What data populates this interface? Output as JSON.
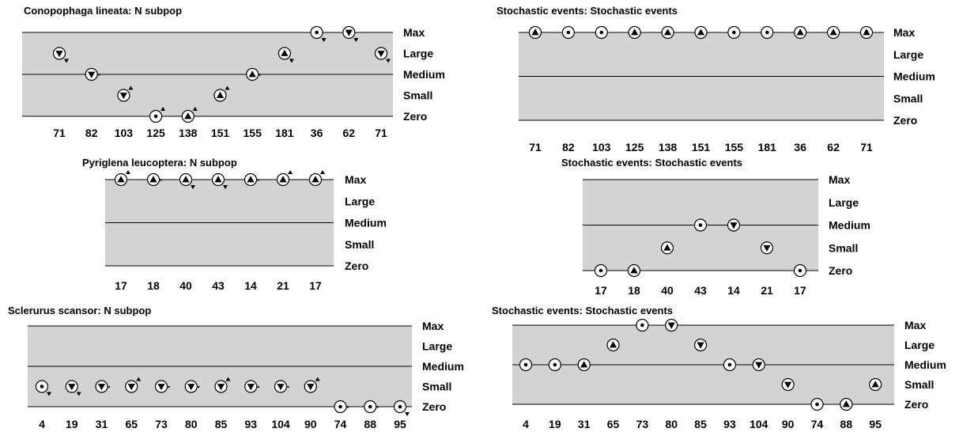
{
  "levels": [
    "Max",
    "Large",
    "Medium",
    "Small",
    "Zero"
  ],
  "colors": {
    "band": "#d3d3d3",
    "line": "#000000",
    "marker_fill": "#ffffff"
  },
  "chart_data": [
    {
      "type": "scatter",
      "title": "Conopophaga lineata: N subpop",
      "categories": [
        "71",
        "82",
        "103",
        "125",
        "138",
        "151",
        "155",
        "181",
        "36",
        "62",
        "71"
      ],
      "values": [
        "Large",
        "Medium",
        "Small",
        "Zero",
        "Zero",
        "Small",
        "Medium",
        "Large",
        "Max",
        "Max",
        "Large"
      ],
      "symbols": [
        "down",
        "down",
        "down",
        "dot",
        "up",
        "up",
        "up",
        "up",
        "dot",
        "down",
        "down"
      ],
      "trends": [
        "down",
        "left",
        "up",
        "up",
        "up",
        "up",
        "left",
        "down",
        "down",
        "down",
        "down"
      ]
    },
    {
      "type": "scatter",
      "title": "Stochastic events: Stochastic events",
      "categories": [
        "71",
        "82",
        "103",
        "125",
        "138",
        "151",
        "155",
        "181",
        "36",
        "62",
        "71"
      ],
      "values": [
        "Max",
        "Max",
        "Max",
        "Max",
        "Max",
        "Max",
        "Max",
        "Max",
        "Max",
        "Max",
        "Max"
      ],
      "symbols": [
        "up",
        "dot",
        "dot",
        "up",
        "up",
        "up",
        "dot",
        "dot",
        "up",
        "up",
        "up"
      ],
      "trends": [
        "",
        "",
        "",
        "",
        "",
        "",
        "",
        "",
        "",
        "",
        ""
      ]
    },
    {
      "type": "scatter",
      "title": "Pyriglena leucoptera: N subpop",
      "categories": [
        "17",
        "18",
        "40",
        "43",
        "14",
        "21",
        "17"
      ],
      "values": [
        "Max",
        "Max",
        "Max",
        "Max",
        "Max",
        "Max",
        "Max"
      ],
      "symbols": [
        "up",
        "up",
        "up",
        "up",
        "up",
        "up",
        "up"
      ],
      "trends": [
        "up",
        "left",
        "down",
        "down",
        "left",
        "up",
        "up"
      ]
    },
    {
      "type": "scatter",
      "title": "Stochastic events: Stochastic events",
      "categories": [
        "17",
        "18",
        "40",
        "43",
        "14",
        "21",
        "17"
      ],
      "values": [
        "Zero",
        "Zero",
        "Small",
        "Medium",
        "Medium",
        "Small",
        "Zero"
      ],
      "symbols": [
        "dot",
        "up",
        "up",
        "dot",
        "down",
        "down",
        "dot"
      ],
      "trends": [
        "",
        "",
        "",
        "",
        "",
        "",
        ""
      ]
    },
    {
      "type": "scatter",
      "title": "Sclerurus scansor: N subpop",
      "categories": [
        "4",
        "19",
        "31",
        "65",
        "73",
        "80",
        "85",
        "93",
        "104",
        "90",
        "74",
        "88",
        "95"
      ],
      "values": [
        "Small",
        "Small",
        "Small",
        "Small",
        "Small",
        "Small",
        "Small",
        "Small",
        "Small",
        "Small",
        "Zero",
        "Zero",
        "Zero"
      ],
      "symbols": [
        "dot",
        "down",
        "down",
        "down",
        "down",
        "down",
        "down",
        "down",
        "down",
        "down",
        "dot",
        "dot",
        "dot"
      ],
      "trends": [
        "down",
        "down",
        "left",
        "up",
        "left",
        "left",
        "up",
        "left",
        "left",
        "up",
        "left",
        "left",
        "down"
      ]
    },
    {
      "type": "scatter",
      "title": "Stochastic events: Stochastic events",
      "categories": [
        "4",
        "19",
        "31",
        "65",
        "73",
        "80",
        "85",
        "93",
        "104",
        "90",
        "74",
        "88",
        "95"
      ],
      "values": [
        "Medium",
        "Medium",
        "Medium",
        "Large",
        "Max",
        "Max",
        "Large",
        "Medium",
        "Medium",
        "Small",
        "Zero",
        "Zero",
        "Small"
      ],
      "symbols": [
        "dot",
        "dot",
        "up",
        "up",
        "dot",
        "down",
        "down",
        "dot",
        "down",
        "down",
        "dot",
        "up",
        "up"
      ],
      "trends": [
        "",
        "",
        "",
        "",
        "",
        "",
        "",
        "",
        "",
        "",
        "",
        "",
        ""
      ]
    }
  ]
}
